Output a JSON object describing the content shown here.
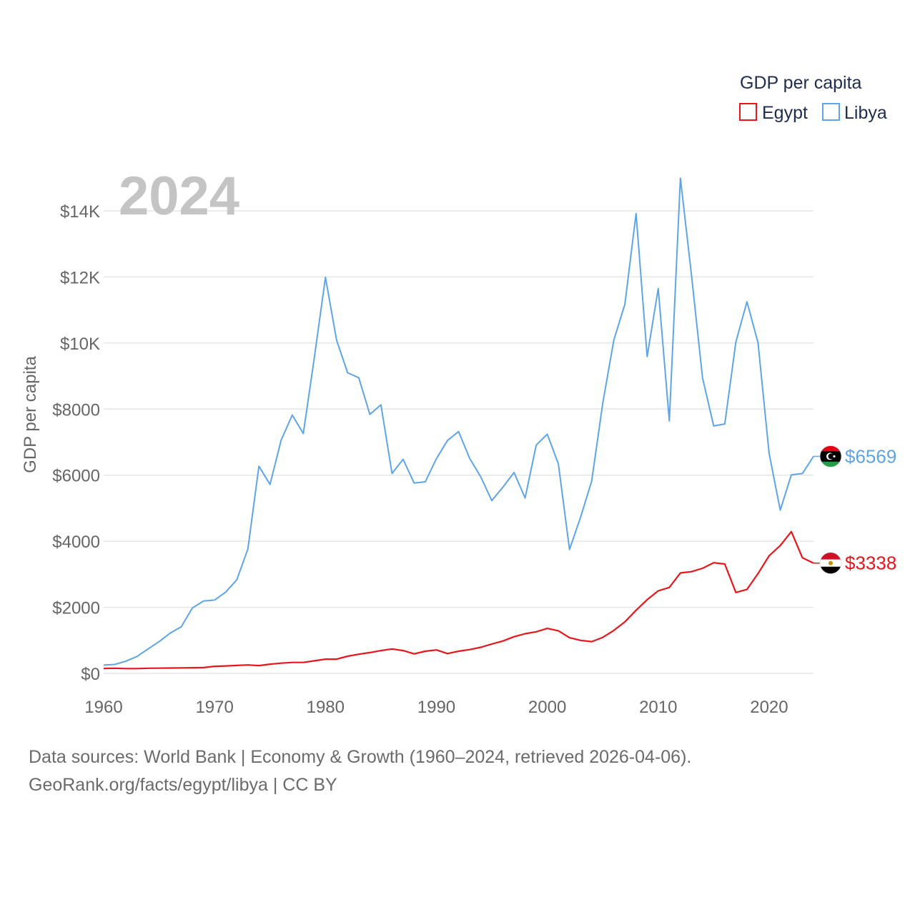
{
  "chart_data": {
    "type": "line",
    "title": "GDP per capita",
    "year_label": "2024",
    "ylabel": "GDP per capita",
    "xlabel": "",
    "xlim": [
      1960,
      2024
    ],
    "ylim": [
      0,
      15000
    ],
    "x_ticks": [
      1960,
      1970,
      1980,
      1990,
      2000,
      2010,
      2020
    ],
    "y_ticks": [
      0,
      2000,
      4000,
      6000,
      8000,
      10000,
      12000,
      14000
    ],
    "y_tick_labels": [
      "$0",
      "$2000",
      "$4000",
      "$6000",
      "$8000",
      "$10K",
      "$12K",
      "$14K"
    ],
    "grid": "horizontal",
    "legend": {
      "title": "GDP per capita",
      "position": "top-right"
    },
    "x": [
      1960,
      1961,
      1962,
      1963,
      1964,
      1965,
      1966,
      1967,
      1968,
      1969,
      1970,
      1971,
      1972,
      1973,
      1974,
      1975,
      1976,
      1977,
      1978,
      1979,
      1980,
      1981,
      1982,
      1983,
      1984,
      1985,
      1986,
      1987,
      1988,
      1989,
      1990,
      1991,
      1992,
      1993,
      1994,
      1995,
      1996,
      1997,
      1998,
      1999,
      2000,
      2001,
      2002,
      2003,
      2004,
      2005,
      2006,
      2007,
      2008,
      2009,
      2010,
      2011,
      2012,
      2013,
      2014,
      2015,
      2016,
      2017,
      2018,
      2019,
      2020,
      2021,
      2022,
      2023,
      2024
    ],
    "series": [
      {
        "name": "Egypt",
        "color": "#e8161c",
        "end_label": "$3338",
        "flag": "egypt-flag",
        "values": [
          150,
          155,
          145,
          145,
          155,
          158,
          162,
          166,
          170,
          175,
          215,
          225,
          240,
          255,
          235,
          280,
          310,
          330,
          330,
          380,
          430,
          430,
          520,
          580,
          630,
          690,
          740,
          690,
          590,
          670,
          710,
          600,
          670,
          720,
          790,
          890,
          980,
          1110,
          1200,
          1260,
          1360,
          1290,
          1080,
          1000,
          960,
          1090,
          1300,
          1560,
          1910,
          2230,
          2500,
          2600,
          3040,
          3080,
          3180,
          3350,
          3310,
          2450,
          2540,
          3020,
          3560,
          3870,
          4290,
          3500,
          3338
        ]
      },
      {
        "name": "Libya",
        "color": "#5ea5e6",
        "end_label": "$6569",
        "flag": "libya-flag",
        "values": [
          250,
          270,
          370,
          510,
          740,
          960,
          1220,
          1410,
          1980,
          2190,
          2220,
          2460,
          2830,
          3760,
          6270,
          5720,
          7060,
          7820,
          7260,
          9570,
          11990,
          10090,
          9100,
          8950,
          7840,
          8130,
          6050,
          6480,
          5760,
          5800,
          6500,
          7050,
          7320,
          6510,
          5950,
          5230,
          5640,
          6080,
          5310,
          6910,
          7240,
          6340,
          3750,
          4730,
          5820,
          8180,
          10090,
          11180,
          13920,
          9590,
          11650,
          7640,
          14990,
          12060,
          8940,
          7490,
          7550,
          10030,
          11250,
          10010,
          6660,
          4940,
          6010,
          6050,
          6569
        ]
      }
    ]
  },
  "footer": {
    "line1": "Data sources: World Bank | Economy & Growth (1960–2024, retrieved 2026-04-06).",
    "line2": "GeoRank.org/facts/egypt/libya | CC BY"
  }
}
